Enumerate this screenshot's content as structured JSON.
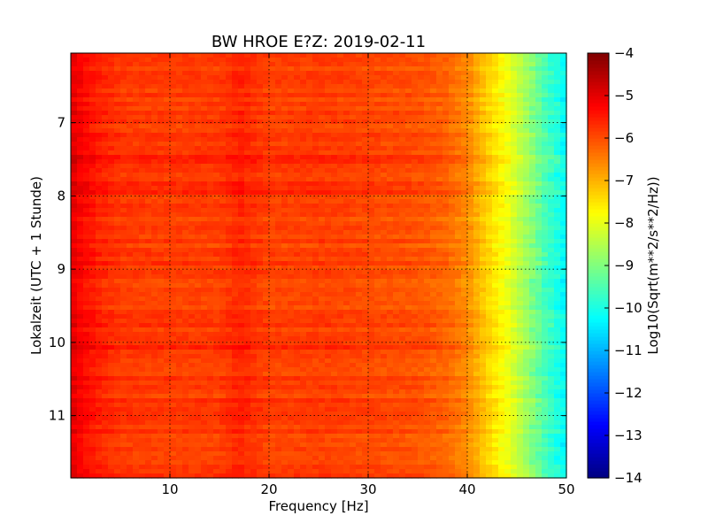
{
  "chart_data": {
    "type": "heatmap",
    "title": "BW HROE E?Z: 2019-02-11",
    "xlabel": "Frequency [Hz]",
    "ylabel": "Lokalzeit (UTC + 1 Stunde)",
    "xlim": [
      0,
      50
    ],
    "ylim": [
      6.05,
      11.85
    ],
    "y_inverted": true,
    "grid": "dotted",
    "x_ticks": [
      {
        "value": 10,
        "label": "10"
      },
      {
        "value": 20,
        "label": "20"
      },
      {
        "value": 30,
        "label": "30"
      },
      {
        "value": 40,
        "label": "40"
      },
      {
        "value": 50,
        "label": "50"
      }
    ],
    "y_ticks": [
      {
        "value": 7,
        "label": "7"
      },
      {
        "value": 8,
        "label": "8"
      },
      {
        "value": 9,
        "label": "9"
      },
      {
        "value": 10,
        "label": "10"
      },
      {
        "value": 11,
        "label": "11"
      }
    ],
    "colormap": "jet",
    "colorbar": {
      "label": "Log10(Sqrt(m**2/s**2/Hz))",
      "range": [
        -14,
        -4
      ],
      "ticks": [
        {
          "value": -4,
          "label": "−4"
        },
        {
          "value": -5,
          "label": "−5"
        },
        {
          "value": -6,
          "label": "−6"
        },
        {
          "value": -7,
          "label": "−7"
        },
        {
          "value": -8,
          "label": "−8"
        },
        {
          "value": -9,
          "label": "−9"
        },
        {
          "value": -10,
          "label": "−10"
        },
        {
          "value": -11,
          "label": "−11"
        },
        {
          "value": -12,
          "label": "−12"
        },
        {
          "value": -13,
          "label": "−13"
        },
        {
          "value": -14,
          "label": "−14"
        }
      ]
    },
    "frequency_profile": {
      "frequency_hz": [
        0,
        1,
        3,
        5,
        10,
        15,
        17,
        20,
        25,
        30,
        35,
        38,
        40,
        42,
        44,
        46,
        48,
        50
      ],
      "log_amplitude": [
        -5.0,
        -5.25,
        -5.6,
        -5.8,
        -5.85,
        -5.85,
        -5.6,
        -5.9,
        -5.85,
        -5.95,
        -6.05,
        -6.25,
        -6.6,
        -7.3,
        -7.9,
        -8.7,
        -9.6,
        -10.3
      ]
    }
  }
}
